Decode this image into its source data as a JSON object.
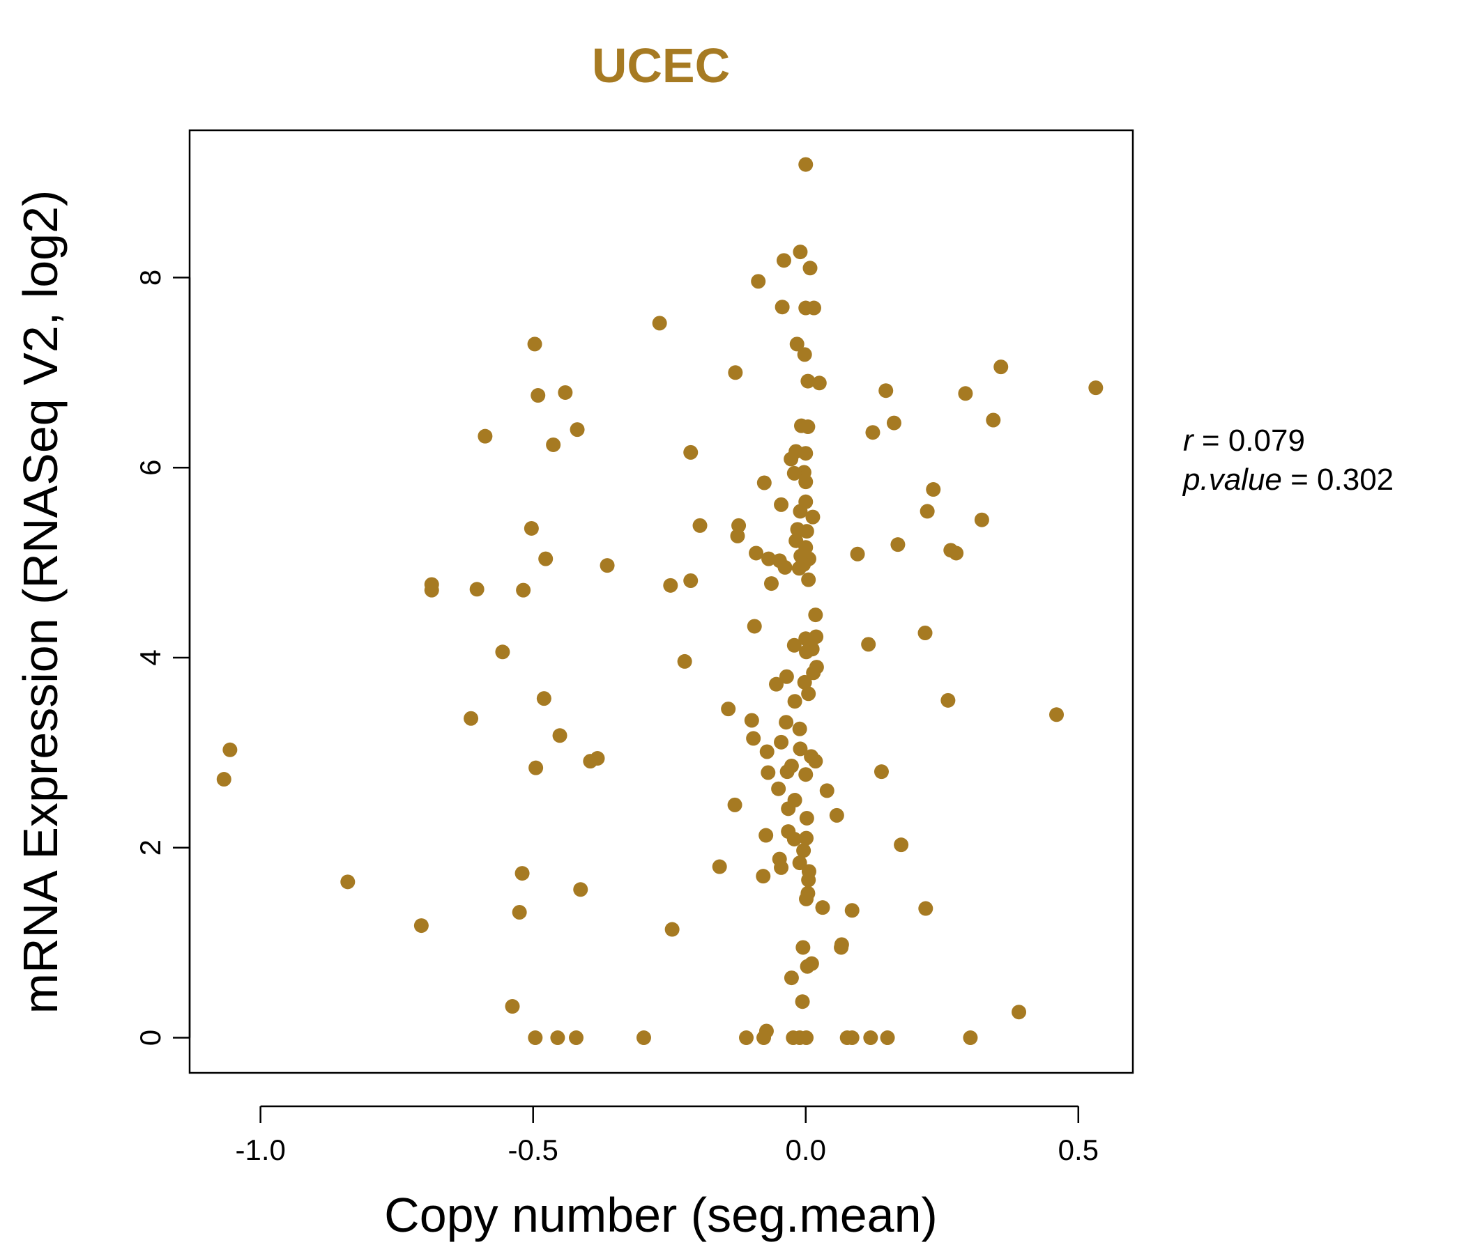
{
  "chart_data": {
    "type": "scatter",
    "title": "UCEC",
    "xlabel": "Copy number (seg.mean)",
    "ylabel": "mRNA Expression (RNASeq V2, log2)",
    "xlim": [
      -1.13,
      0.6
    ],
    "ylim": [
      -0.37,
      9.55
    ],
    "x_ticks": [
      -1.0,
      -0.5,
      0.0,
      0.5
    ],
    "x_tick_labels": [
      "-1.0",
      "-0.5",
      "0.0",
      "0.5"
    ],
    "y_ticks": [
      0,
      2,
      4,
      6,
      8
    ],
    "y_tick_labels": [
      "0",
      "2",
      "4",
      "6",
      "8"
    ],
    "grid": false,
    "point_color": "#A67A22",
    "stats": {
      "r_label": "r",
      "r_value": "0.079",
      "p_label": "p.value",
      "p_value": "0.302"
    },
    "points": [
      {
        "x": 0.0,
        "y": 9.19
      },
      {
        "x": -0.01,
        "y": 8.27
      },
      {
        "x": -0.04,
        "y": 8.18
      },
      {
        "x": 0.008,
        "y": 8.1
      },
      {
        "x": -0.087,
        "y": 7.96
      },
      {
        "x": -0.043,
        "y": 7.69
      },
      {
        "x": 0.0,
        "y": 7.68
      },
      {
        "x": 0.015,
        "y": 7.68
      },
      {
        "x": -0.268,
        "y": 7.52
      },
      {
        "x": -0.497,
        "y": 7.3
      },
      {
        "x": -0.016,
        "y": 7.3
      },
      {
        "x": -0.002,
        "y": 7.19
      },
      {
        "x": 0.358,
        "y": 7.06
      },
      {
        "x": -0.129,
        "y": 7.0
      },
      {
        "x": 0.004,
        "y": 6.91
      },
      {
        "x": 0.025,
        "y": 6.89
      },
      {
        "x": 0.532,
        "y": 6.84
      },
      {
        "x": 0.147,
        "y": 6.81
      },
      {
        "x": -0.441,
        "y": 6.79
      },
      {
        "x": 0.293,
        "y": 6.78
      },
      {
        "x": -0.491,
        "y": 6.76
      },
      {
        "x": 0.344,
        "y": 6.5
      },
      {
        "x": 0.162,
        "y": 6.47
      },
      {
        "x": -0.008,
        "y": 6.44
      },
      {
        "x": 0.004,
        "y": 6.43
      },
      {
        "x": -0.419,
        "y": 6.4
      },
      {
        "x": 0.123,
        "y": 6.37
      },
      {
        "x": -0.588,
        "y": 6.33
      },
      {
        "x": -0.463,
        "y": 6.24
      },
      {
        "x": -0.211,
        "y": 6.16
      },
      {
        "x": -0.018,
        "y": 6.17
      },
      {
        "x": 0.0,
        "y": 6.15
      },
      {
        "x": -0.027,
        "y": 6.09
      },
      {
        "x": -0.003,
        "y": 5.95
      },
      {
        "x": -0.021,
        "y": 5.94
      },
      {
        "x": 0.0,
        "y": 5.85
      },
      {
        "x": -0.076,
        "y": 5.84
      },
      {
        "x": 0.234,
        "y": 5.77
      },
      {
        "x": 0.0,
        "y": 5.64
      },
      {
        "x": -0.045,
        "y": 5.61
      },
      {
        "x": 0.223,
        "y": 5.54
      },
      {
        "x": -0.01,
        "y": 5.54
      },
      {
        "x": 0.013,
        "y": 5.48
      },
      {
        "x": 0.323,
        "y": 5.45
      },
      {
        "x": -0.194,
        "y": 5.39
      },
      {
        "x": -0.123,
        "y": 5.39
      },
      {
        "x": -0.503,
        "y": 5.36
      },
      {
        "x": -0.015,
        "y": 5.35
      },
      {
        "x": 0.002,
        "y": 5.33
      },
      {
        "x": -0.125,
        "y": 5.28
      },
      {
        "x": -0.018,
        "y": 5.23
      },
      {
        "x": 0.169,
        "y": 5.19
      },
      {
        "x": 0.0,
        "y": 5.16
      },
      {
        "x": 0.266,
        "y": 5.13
      },
      {
        "x": 0.276,
        "y": 5.1
      },
      {
        "x": -0.091,
        "y": 5.1
      },
      {
        "x": 0.095,
        "y": 5.09
      },
      {
        "x": -0.009,
        "y": 5.07
      },
      {
        "x": -0.068,
        "y": 5.04
      },
      {
        "x": -0.048,
        "y": 5.02
      },
      {
        "x": 0.006,
        "y": 5.04
      },
      {
        "x": -0.477,
        "y": 5.04
      },
      {
        "x": -0.004,
        "y": 4.98
      },
      {
        "x": -0.364,
        "y": 4.97
      },
      {
        "x": -0.038,
        "y": 4.95
      },
      {
        "x": -0.012,
        "y": 4.94
      },
      {
        "x": 0.005,
        "y": 4.82
      },
      {
        "x": -0.211,
        "y": 4.81
      },
      {
        "x": -0.063,
        "y": 4.78
      },
      {
        "x": -0.686,
        "y": 4.77
      },
      {
        "x": -0.248,
        "y": 4.76
      },
      {
        "x": -0.603,
        "y": 4.72
      },
      {
        "x": -0.518,
        "y": 4.71
      },
      {
        "x": -0.686,
        "y": 4.71
      },
      {
        "x": 0.018,
        "y": 4.45
      },
      {
        "x": -0.094,
        "y": 4.33
      },
      {
        "x": 0.219,
        "y": 4.26
      },
      {
        "x": 0.019,
        "y": 4.22
      },
      {
        "x": 0.0,
        "y": 4.2
      },
      {
        "x": 0.115,
        "y": 4.14
      },
      {
        "x": -0.021,
        "y": 4.13
      },
      {
        "x": 0.012,
        "y": 4.09
      },
      {
        "x": 0.001,
        "y": 4.06
      },
      {
        "x": -0.556,
        "y": 4.06
      },
      {
        "x": -0.222,
        "y": 3.96
      },
      {
        "x": 0.02,
        "y": 3.9
      },
      {
        "x": 0.014,
        "y": 3.84
      },
      {
        "x": -0.035,
        "y": 3.8
      },
      {
        "x": -0.002,
        "y": 3.74
      },
      {
        "x": -0.054,
        "y": 3.72
      },
      {
        "x": 0.005,
        "y": 3.62
      },
      {
        "x": -0.48,
        "y": 3.57
      },
      {
        "x": 0.261,
        "y": 3.55
      },
      {
        "x": -0.02,
        "y": 3.54
      },
      {
        "x": -0.142,
        "y": 3.46
      },
      {
        "x": 0.46,
        "y": 3.4
      },
      {
        "x": -0.614,
        "y": 3.36
      },
      {
        "x": -0.099,
        "y": 3.34
      },
      {
        "x": -0.036,
        "y": 3.32
      },
      {
        "x": -0.011,
        "y": 3.25
      },
      {
        "x": -0.451,
        "y": 3.18
      },
      {
        "x": -0.096,
        "y": 3.15
      },
      {
        "x": -0.045,
        "y": 3.11
      },
      {
        "x": -0.01,
        "y": 3.04
      },
      {
        "x": -1.056,
        "y": 3.03
      },
      {
        "x": -0.071,
        "y": 3.01
      },
      {
        "x": 0.01,
        "y": 2.96
      },
      {
        "x": -0.382,
        "y": 2.94
      },
      {
        "x": -0.395,
        "y": 2.91
      },
      {
        "x": 0.018,
        "y": 2.91
      },
      {
        "x": -0.026,
        "y": 2.86
      },
      {
        "x": -0.495,
        "y": 2.84
      },
      {
        "x": -0.034,
        "y": 2.8
      },
      {
        "x": 0.139,
        "y": 2.8
      },
      {
        "x": -0.069,
        "y": 2.79
      },
      {
        "x": 0.0,
        "y": 2.77
      },
      {
        "x": -1.067,
        "y": 2.72
      },
      {
        "x": -0.05,
        "y": 2.62
      },
      {
        "x": 0.039,
        "y": 2.6
      },
      {
        "x": -0.02,
        "y": 2.5
      },
      {
        "x": -0.13,
        "y": 2.45
      },
      {
        "x": -0.032,
        "y": 2.41
      },
      {
        "x": 0.057,
        "y": 2.34
      },
      {
        "x": 0.002,
        "y": 2.31
      },
      {
        "x": -0.032,
        "y": 2.17
      },
      {
        "x": -0.073,
        "y": 2.13
      },
      {
        "x": -0.021,
        "y": 2.09
      },
      {
        "x": 0.001,
        "y": 2.1
      },
      {
        "x": 0.175,
        "y": 2.03
      },
      {
        "x": -0.004,
        "y": 1.97
      },
      {
        "x": -0.048,
        "y": 1.88
      },
      {
        "x": -0.011,
        "y": 1.84
      },
      {
        "x": -0.158,
        "y": 1.8
      },
      {
        "x": -0.045,
        "y": 1.79
      },
      {
        "x": 0.006,
        "y": 1.75
      },
      {
        "x": -0.52,
        "y": 1.73
      },
      {
        "x": -0.078,
        "y": 1.7
      },
      {
        "x": 0.005,
        "y": 1.66
      },
      {
        "x": -0.84,
        "y": 1.64
      },
      {
        "x": -0.413,
        "y": 1.56
      },
      {
        "x": 0.004,
        "y": 1.52
      },
      {
        "x": 0.001,
        "y": 1.46
      },
      {
        "x": 0.031,
        "y": 1.37
      },
      {
        "x": 0.22,
        "y": 1.36
      },
      {
        "x": 0.085,
        "y": 1.34
      },
      {
        "x": -0.525,
        "y": 1.32
      },
      {
        "x": -0.705,
        "y": 1.18
      },
      {
        "x": -0.245,
        "y": 1.14
      },
      {
        "x": 0.066,
        "y": 0.98
      },
      {
        "x": 0.065,
        "y": 0.95
      },
      {
        "x": -0.005,
        "y": 0.95
      },
      {
        "x": 0.011,
        "y": 0.78
      },
      {
        "x": 0.003,
        "y": 0.75
      },
      {
        "x": -0.026,
        "y": 0.63
      },
      {
        "x": -0.006,
        "y": 0.38
      },
      {
        "x": -0.538,
        "y": 0.33
      },
      {
        "x": 0.391,
        "y": 0.27
      },
      {
        "x": -0.072,
        "y": 0.07
      },
      {
        "x": -0.496,
        "y": 0.0
      },
      {
        "x": -0.455,
        "y": 0.0
      },
      {
        "x": -0.421,
        "y": 0.0
      },
      {
        "x": -0.297,
        "y": 0.0
      },
      {
        "x": -0.109,
        "y": 0.0
      },
      {
        "x": -0.077,
        "y": 0.0
      },
      {
        "x": -0.023,
        "y": 0.0
      },
      {
        "x": -0.011,
        "y": 0.0
      },
      {
        "x": 0.001,
        "y": 0.0
      },
      {
        "x": 0.076,
        "y": 0.0
      },
      {
        "x": 0.085,
        "y": 0.0
      },
      {
        "x": 0.119,
        "y": 0.0
      },
      {
        "x": 0.15,
        "y": 0.0
      },
      {
        "x": 0.302,
        "y": 0.0
      }
    ]
  }
}
